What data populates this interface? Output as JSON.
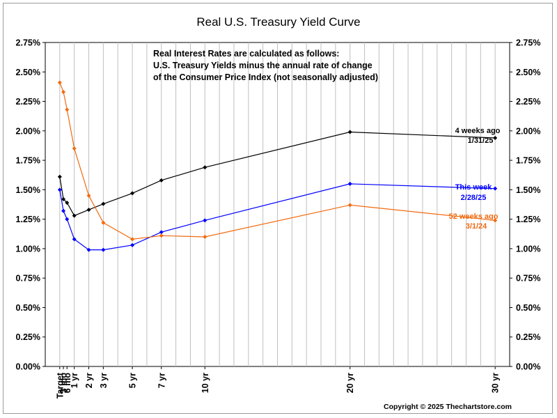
{
  "chart_data": {
    "type": "line",
    "title": "Real U.S. Treasury Yield Curve",
    "categories": [
      "Target",
      "3 mo",
      "6 mo",
      "1 yr",
      "2 yr",
      "3 yr",
      "5 yr",
      "7 yr",
      "10 yr",
      "20 yr",
      "30 yr"
    ],
    "x_months": [
      0,
      3,
      6,
      12,
      24,
      36,
      60,
      84,
      120,
      240,
      360
    ],
    "x_range": [
      -12,
      372
    ],
    "ylim": [
      0,
      2.75
    ],
    "yticks": [
      0,
      0.25,
      0.5,
      0.75,
      1.0,
      1.25,
      1.5,
      1.75,
      2.0,
      2.25,
      2.5,
      2.75
    ],
    "ytick_labels": [
      "0.00%",
      "0.25%",
      "0.50%",
      "0.75%",
      "1.00%",
      "1.25%",
      "1.50%",
      "1.75%",
      "2.00%",
      "2.25%",
      "2.50%",
      "2.75%"
    ],
    "grid": true,
    "series": [
      {
        "name": "4 weeks ago",
        "date": "1/31/25",
        "color": "#000000",
        "values": [
          1.61,
          1.42,
          1.39,
          1.28,
          1.33,
          1.38,
          1.47,
          1.58,
          1.69,
          1.99,
          1.94
        ]
      },
      {
        "name": "This week",
        "date": "2/28/25",
        "color": "#0000ff",
        "values": [
          1.5,
          1.32,
          1.25,
          1.08,
          0.99,
          0.99,
          1.03,
          1.14,
          1.24,
          1.55,
          1.51
        ]
      },
      {
        "name": "52 weeks ago",
        "date": "3/1/24",
        "color": "#f26a0f",
        "values": [
          2.41,
          2.33,
          2.18,
          1.85,
          1.45,
          1.22,
          1.08,
          1.11,
          1.1,
          1.37,
          1.24
        ]
      }
    ],
    "annotation": [
      "Real Interest Rates are calculated as follows:",
      "U.S. Treasury Yields minus the annual rate of change",
      "of the Consumer Price Index (not seasonally adjusted)"
    ]
  },
  "footer": {
    "copyright": "Copyright © 2025 Thechartstore.com"
  }
}
